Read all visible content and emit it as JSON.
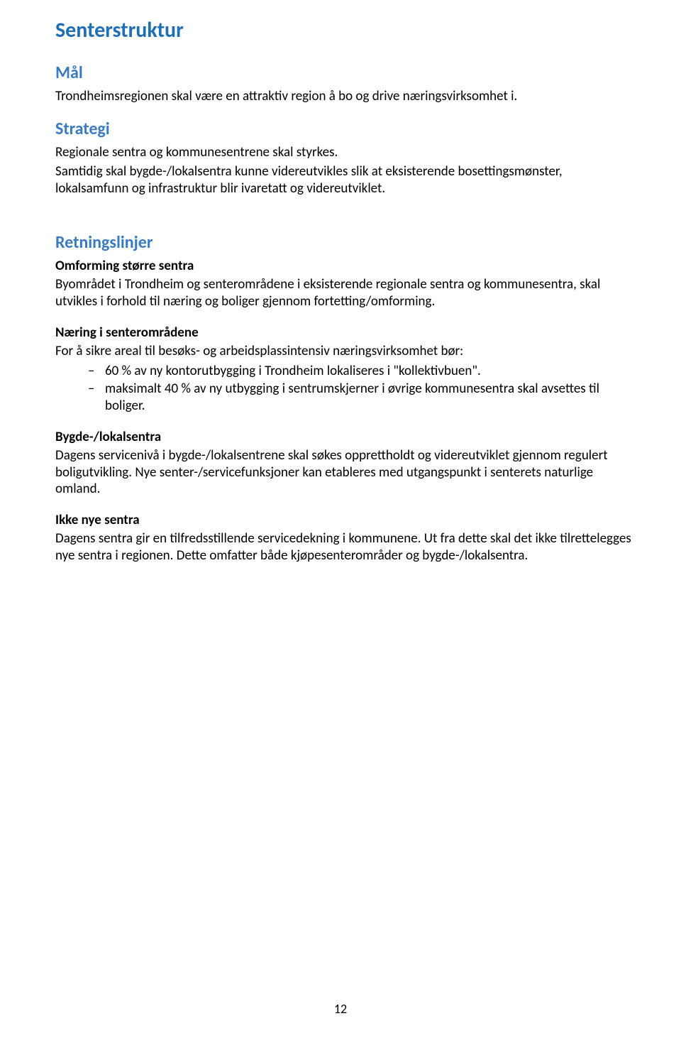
{
  "title": "Senterstruktur",
  "maal": {
    "heading": "Mål",
    "text": "Trondheimsregionen skal være en attraktiv region å bo og drive næringsvirksomhet i."
  },
  "strategi": {
    "heading": "Strategi",
    "p1": "Regionale sentra og kommunesentrene skal styrkes.",
    "p2": "Samtidig skal bygde-/lokalsentra kunne videreutvikles slik at eksisterende bosettingsmønster, lokalsamfunn og infrastruktur blir ivaretatt og videreutviklet."
  },
  "retningslinjer": {
    "heading": "Retningslinjer",
    "sec1": {
      "title": "Omforming større sentra",
      "text": "Byområdet i Trondheim og senterområdene i eksisterende regionale sentra og kommunesentra, skal utvikles i forhold til næring og boliger gjennom fortetting/omforming."
    },
    "sec2": {
      "title": "Næring i senterområdene",
      "intro": "For å sikre areal til besøks- og arbeidsplassintensiv næringsvirksomhet bør:",
      "items": [
        "60 % av ny kontorutbygging i Trondheim lokaliseres i \"kollektivbuen\".",
        "maksimalt 40 % av ny utbygging i sentrumskjerner i øvrige kommunesentra skal avsettes til boliger."
      ]
    },
    "sec3": {
      "title": "Bygde-/lokalsentra",
      "text": "Dagens servicenivå i bygde-/lokalsentrene skal søkes opprettholdt og videreutviklet gjennom regulert boligutvikling. Nye senter-/servicefunksjoner kan etableres med utgangspunkt i senterets naturlige omland."
    },
    "sec4": {
      "title": "Ikke nye sentra",
      "text": "Dagens sentra gir en tilfredsstillende servicedekning i kommunene. Ut fra dette skal det ikke tilrettelegges nye sentra i regionen. Dette omfatter både kjøpesenterområder og bygde-/lokalsentra."
    }
  },
  "pageNumber": "12"
}
